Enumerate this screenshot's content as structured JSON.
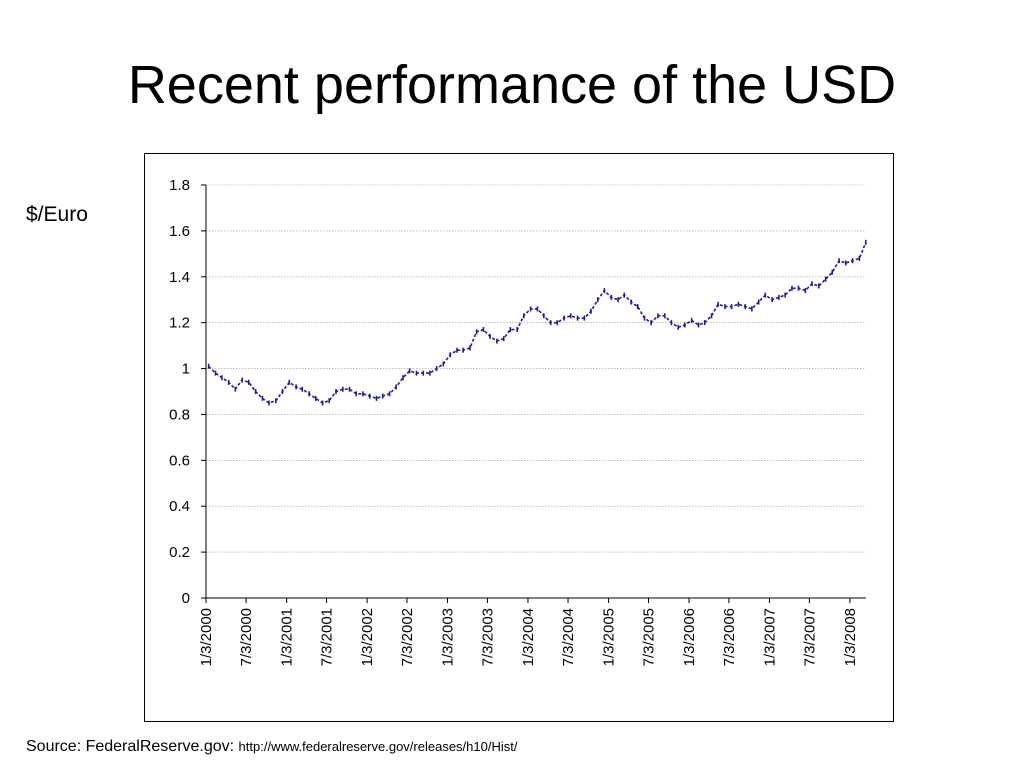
{
  "slide": {
    "title": "Recent performance of the USD",
    "side_label": "$/Euro",
    "source_prefix": "Source: FederalReserve.gov: ",
    "source_url": "http://www.federalreserve.gov/releases/h10/Hist/"
  },
  "chart_data": {
    "type": "line",
    "title": "",
    "xlabel": "",
    "ylabel": "$/Euro",
    "ylim": [
      0,
      1.8
    ],
    "yticks": [
      "0",
      "0.2",
      "0.4",
      "0.6",
      "0.8",
      "1",
      "1.2",
      "1.4",
      "1.6",
      "1.8"
    ],
    "xticks": [
      "1/3/2000",
      "7/3/2000",
      "1/3/2001",
      "7/3/2001",
      "1/3/2002",
      "7/3/2002",
      "1/3/2003",
      "7/3/2003",
      "1/3/2004",
      "7/3/2004",
      "1/3/2005",
      "7/3/2005",
      "1/3/2006",
      "7/3/2006",
      "1/3/2007",
      "7/3/2007",
      "1/3/2008"
    ],
    "grid": true,
    "series_color": "#1f1f8f",
    "series": [
      {
        "x": [
          "2000-01",
          "2000-02",
          "2000-03",
          "2000-04",
          "2000-05",
          "2000-06",
          "2000-07",
          "2000-08",
          "2000-09",
          "2000-10",
          "2000-11",
          "2000-12",
          "2001-01",
          "2001-02",
          "2001-03",
          "2001-04",
          "2001-05",
          "2001-06",
          "2001-07",
          "2001-08",
          "2001-09",
          "2001-10",
          "2001-11",
          "2001-12",
          "2002-01",
          "2002-02",
          "2002-03",
          "2002-04",
          "2002-05",
          "2002-06",
          "2002-07",
          "2002-08",
          "2002-09",
          "2002-10",
          "2002-11",
          "2002-12",
          "2003-01",
          "2003-02",
          "2003-03",
          "2003-04",
          "2003-05",
          "2003-06",
          "2003-07",
          "2003-08",
          "2003-09",
          "2003-10",
          "2003-11",
          "2003-12",
          "2004-01",
          "2004-02",
          "2004-03",
          "2004-04",
          "2004-05",
          "2004-06",
          "2004-07",
          "2004-08",
          "2004-09",
          "2004-10",
          "2004-11",
          "2004-12",
          "2005-01",
          "2005-02",
          "2005-03",
          "2005-04",
          "2005-05",
          "2005-06",
          "2005-07",
          "2005-08",
          "2005-09",
          "2005-10",
          "2005-11",
          "2005-12",
          "2006-01",
          "2006-02",
          "2006-03",
          "2006-04",
          "2006-05",
          "2006-06",
          "2006-07",
          "2006-08",
          "2006-09",
          "2006-10",
          "2006-11",
          "2006-12",
          "2007-01",
          "2007-02",
          "2007-03",
          "2007-04",
          "2007-05",
          "2007-06",
          "2007-07",
          "2007-08",
          "2007-09",
          "2007-10",
          "2007-11",
          "2007-12",
          "2008-01",
          "2008-02",
          "2008-03"
        ],
        "values": [
          1.01,
          0.98,
          0.96,
          0.94,
          0.91,
          0.95,
          0.94,
          0.9,
          0.87,
          0.85,
          0.86,
          0.9,
          0.94,
          0.92,
          0.91,
          0.89,
          0.87,
          0.85,
          0.86,
          0.9,
          0.91,
          0.91,
          0.89,
          0.89,
          0.88,
          0.87,
          0.88,
          0.89,
          0.92,
          0.96,
          0.99,
          0.98,
          0.98,
          0.98,
          1.0,
          1.02,
          1.06,
          1.08,
          1.08,
          1.09,
          1.16,
          1.17,
          1.14,
          1.12,
          1.13,
          1.17,
          1.17,
          1.23,
          1.26,
          1.26,
          1.23,
          1.2,
          1.2,
          1.22,
          1.23,
          1.22,
          1.22,
          1.25,
          1.3,
          1.34,
          1.31,
          1.3,
          1.32,
          1.29,
          1.27,
          1.22,
          1.2,
          1.23,
          1.23,
          1.2,
          1.18,
          1.19,
          1.21,
          1.19,
          1.2,
          1.23,
          1.28,
          1.27,
          1.27,
          1.28,
          1.27,
          1.26,
          1.29,
          1.32,
          1.3,
          1.31,
          1.32,
          1.35,
          1.35,
          1.34,
          1.37,
          1.36,
          1.39,
          1.42,
          1.47,
          1.46,
          1.47,
          1.48,
          1.55
        ]
      }
    ]
  }
}
